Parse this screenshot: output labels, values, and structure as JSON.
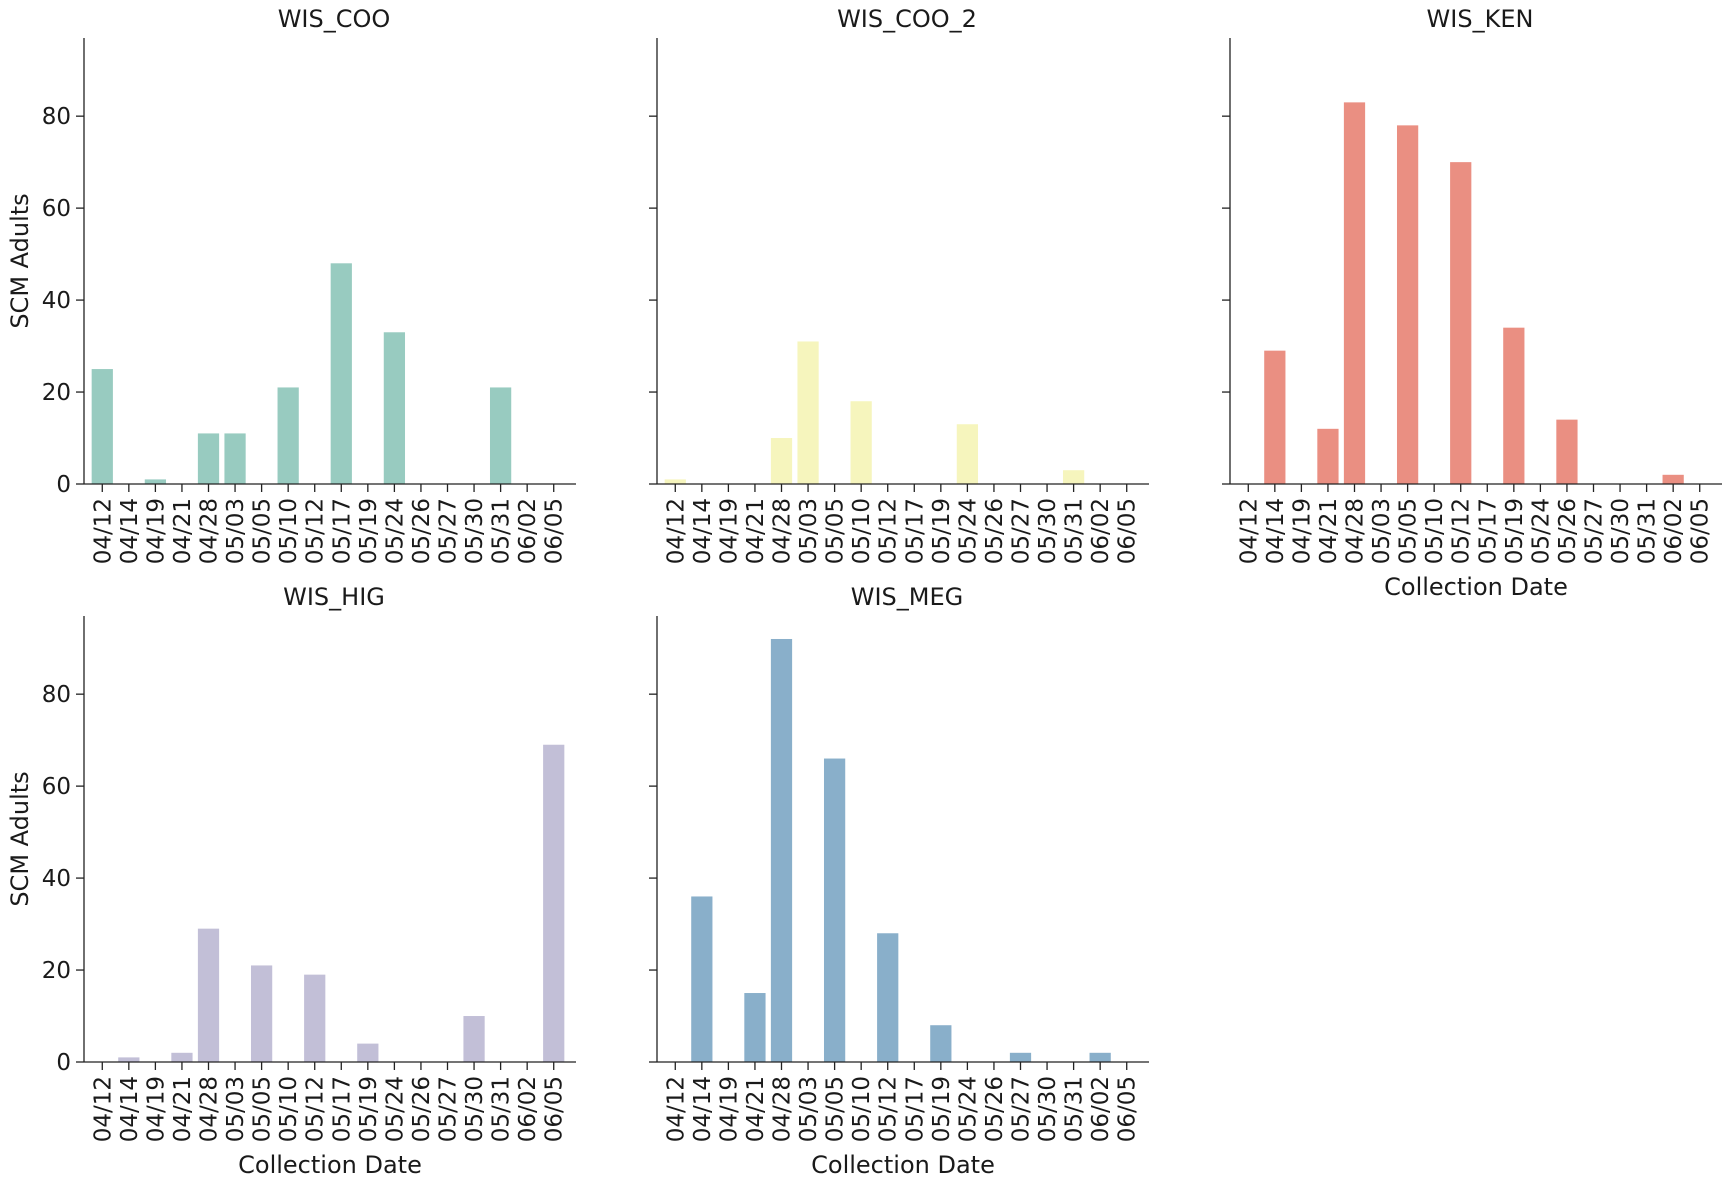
{
  "chart_data": [
    {
      "type": "bar",
      "title": "WIS_COO",
      "color": "#98cbc0",
      "categories": [
        "04/12",
        "04/14",
        "04/19",
        "04/21",
        "04/28",
        "05/03",
        "05/05",
        "05/10",
        "05/12",
        "05/17",
        "05/19",
        "05/24",
        "05/26",
        "05/27",
        "05/30",
        "05/31",
        "06/02",
        "06/05"
      ],
      "values": [
        25,
        0,
        1,
        0,
        11,
        11,
        0,
        21,
        0,
        48,
        0,
        33,
        0,
        0,
        0,
        21,
        0,
        0
      ],
      "xlabel": "",
      "ylabel": "SCM Adults",
      "ylim": [
        0,
        97
      ],
      "yticks": [
        0,
        20,
        40,
        60,
        80
      ]
    },
    {
      "type": "bar",
      "title": "WIS_COO_2",
      "color": "#f6f5bd",
      "categories": [
        "04/12",
        "04/14",
        "04/19",
        "04/21",
        "04/28",
        "05/03",
        "05/05",
        "05/10",
        "05/12",
        "05/17",
        "05/19",
        "05/24",
        "05/26",
        "05/27",
        "05/30",
        "05/31",
        "06/02",
        "06/05"
      ],
      "values": [
        1,
        0,
        0,
        0,
        10,
        31,
        0,
        18,
        0,
        0,
        0,
        13,
        0,
        0,
        0,
        3,
        0,
        0
      ],
      "xlabel": "",
      "ylabel": "",
      "ylim": [
        0,
        97
      ],
      "yticks": [
        0,
        20,
        40,
        60,
        80
      ]
    },
    {
      "type": "bar",
      "title": "WIS_KEN",
      "color": "#ea8f82",
      "categories": [
        "04/12",
        "04/14",
        "04/19",
        "04/21",
        "04/28",
        "05/03",
        "05/05",
        "05/10",
        "05/12",
        "05/17",
        "05/19",
        "05/24",
        "05/26",
        "05/27",
        "05/30",
        "05/31",
        "06/02",
        "06/05"
      ],
      "values": [
        0,
        29,
        0,
        12,
        83,
        0,
        78,
        0,
        70,
        0,
        34,
        0,
        14,
        0,
        0,
        0,
        2,
        0
      ],
      "xlabel": "Collection Date",
      "ylabel": "",
      "ylim": [
        0,
        97
      ],
      "yticks": [
        0,
        20,
        40,
        60,
        80
      ]
    },
    {
      "type": "bar",
      "title": "WIS_HIG",
      "color": "#c2bfd7",
      "categories": [
        "04/12",
        "04/14",
        "04/19",
        "04/21",
        "04/28",
        "05/03",
        "05/05",
        "05/10",
        "05/12",
        "05/17",
        "05/19",
        "05/24",
        "05/26",
        "05/27",
        "05/30",
        "05/31",
        "06/02",
        "06/05"
      ],
      "values": [
        0,
        1,
        0,
        2,
        29,
        0,
        21,
        0,
        19,
        0,
        4,
        0,
        0,
        0,
        10,
        0,
        0,
        69
      ],
      "xlabel": "Collection Date",
      "ylabel": "SCM Adults",
      "ylim": [
        0,
        97
      ],
      "yticks": [
        0,
        20,
        40,
        60,
        80
      ]
    },
    {
      "type": "bar",
      "title": "WIS_MEG",
      "color": "#89afca",
      "categories": [
        "04/12",
        "04/14",
        "04/19",
        "04/21",
        "04/28",
        "05/03",
        "05/05",
        "05/10",
        "05/12",
        "05/17",
        "05/19",
        "05/24",
        "05/26",
        "05/27",
        "05/30",
        "05/31",
        "06/02",
        "06/05"
      ],
      "values": [
        0,
        36,
        0,
        15,
        92,
        0,
        66,
        0,
        28,
        0,
        8,
        0,
        0,
        2,
        0,
        0,
        2,
        0
      ],
      "xlabel": "Collection Date",
      "ylabel": "",
      "ylim": [
        0,
        97
      ],
      "yticks": [
        0,
        20,
        40,
        60,
        80
      ]
    }
  ]
}
